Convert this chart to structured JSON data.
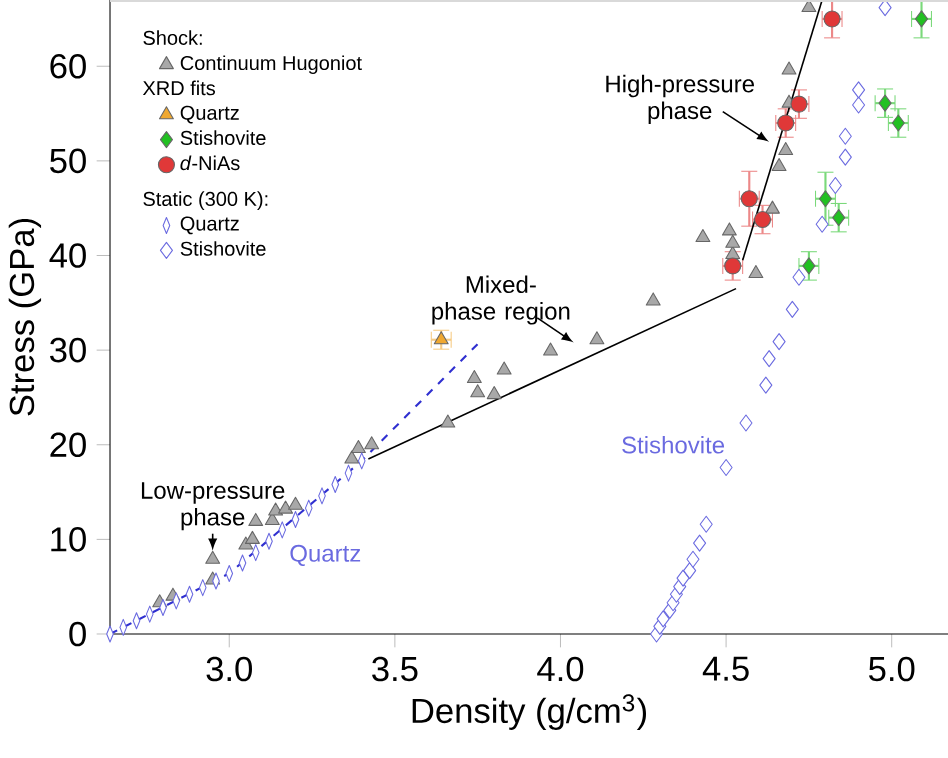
{
  "chart_data": {
    "type": "scatter",
    "xlabel": "Density (g/cm$^{3}$)",
    "ylabel": "Stress (GPa)",
    "xlim": [
      2.64,
      5.17
    ],
    "ylim": [
      0,
      67
    ],
    "xticks": [
      {
        "value": 3,
        "label": "3.0"
      },
      3.5,
      {
        "value": 4,
        "label": "4.0"
      },
      4.5,
      {
        "value": 5,
        "label": "5.0"
      }
    ],
    "yticks": [
      0,
      10,
      20,
      30,
      40,
      50,
      60
    ],
    "grid": false,
    "legend": "top left",
    "annotations": [
      "Shock:",
      "XRD fits",
      "Static (300 K):",
      {
        "text": "Low-pressure phase",
        "x": 2.95,
        "y": 8.8
      },
      "Mixed-phase region",
      {
        "text": "High-pressure phase",
        "x": 4.63,
        "y": 52
      },
      "Quartz",
      "Stishovite"
    ],
    "series": [
      {
        "name": "Continuum Hugoniot",
        "color": "#a8a8a8",
        "marker": "triangle",
        "x": [
          2.79,
          2.83,
          2.95,
          2.95,
          3.05,
          3.07,
          3.08,
          3.13,
          3.14,
          3.17,
          3.2,
          3.37,
          3.39,
          3.43,
          3.66,
          3.74,
          3.75,
          3.8,
          3.83,
          3.97,
          4.11,
          4.28,
          4.43,
          4.51,
          4.52,
          4.52,
          4.59,
          4.64,
          4.66,
          4.68,
          4.69,
          4.69,
          4.75
        ],
        "values": [
          3.3,
          4.0,
          7.9,
          5.7,
          9.4,
          10,
          11.9,
          12,
          13,
          13.2,
          13.6,
          18.5,
          19.6,
          20,
          22.3,
          27,
          25.5,
          25.3,
          27.9,
          29.9,
          31.1,
          35.2,
          41.9,
          42.6,
          40.1,
          41.3,
          38.1,
          44.9,
          49.4,
          51.1,
          56.1,
          59.6,
          66.2
        ]
      },
      {
        "name": "Quartz",
        "color": "#f0a830",
        "marker": "triangle",
        "x": [
          3.64
        ],
        "values": [
          31.1
        ],
        "errors": [
          1
        ],
        "xerrors": [
          0.03
        ]
      },
      {
        "name": "Stishovite",
        "color": "#22c022",
        "marker": "diamond",
        "x": [
          4.75,
          4.8,
          4.84,
          4.98,
          5.02,
          5.09
        ],
        "values": [
          38.9,
          46.0,
          44.0,
          56.1,
          54.0,
          65.0
        ],
        "errors": [
          1.5,
          2.8,
          1.5,
          1.5,
          1.5,
          2
        ],
        "xerrors": [
          0.03,
          0.03,
          0.03,
          0.03,
          0.03,
          0.03
        ]
      },
      {
        "name": "*d*-NiAs",
        "color": "#e03838",
        "marker": "circle",
        "x": [
          4.52,
          4.61,
          4.57,
          4.68,
          4.72,
          4.82
        ],
        "values": [
          38.9,
          43.8,
          46.0,
          54.0,
          56.0,
          65.0
        ],
        "errors": [
          1.5,
          1.5,
          2.9,
          1.5,
          1.5,
          2
        ],
        "xerrors": [
          0.03,
          0.03,
          0.03,
          0.03,
          0.03,
          0.03
        ]
      },
      {
        "name": "Quartz",
        "color": "#6a6ae0",
        "marker": "diamond",
        "x": [
          2.64,
          2.68,
          2.72,
          2.76,
          2.8,
          2.84,
          2.88,
          2.92,
          2.96,
          3.0,
          3.04,
          3.08,
          3.12,
          3.16,
          3.2,
          3.24,
          3.28,
          3.32,
          3.36,
          3.4
        ],
        "values": [
          0,
          0.7,
          1.4,
          2.1,
          2.8,
          3.5,
          4.2,
          4.9,
          5.6,
          6.4,
          7.5,
          8.6,
          9.8,
          11.0,
          12.1,
          13.3,
          14.6,
          15.8,
          17.0,
          18.3
        ]
      },
      {
        "name": "Stishovite",
        "color": "#6a6ae0",
        "marker": "diamond",
        "x": [
          4.29,
          4.3,
          4.31,
          4.33,
          4.34,
          4.35,
          4.36,
          4.37,
          4.39,
          4.4,
          4.42,
          4.44,
          4.5,
          4.56,
          4.62,
          4.63,
          4.66,
          4.7,
          4.72,
          4.79,
          4.83,
          4.86,
          4.86,
          4.9,
          4.9,
          4.98
        ],
        "values": [
          0,
          0.8,
          1.6,
          2.5,
          3.3,
          4.2,
          5,
          5.9,
          6.7,
          7.9,
          9.6,
          11.6,
          17.6,
          22.3,
          26.3,
          29.1,
          30.9,
          34.3,
          37.7,
          43.3,
          47.4,
          50.4,
          52.6,
          55.9,
          57.5,
          66.2
        ]
      },
      {
        "type": "line",
        "color": "#000000",
        "line_style": "solid",
        "marker": "none",
        "x": [
          3.42,
          4.53
        ],
        "values": [
          18.5,
          36.5
        ]
      },
      {
        "type": "line",
        "color": "#000000",
        "line_style": "solid",
        "marker": "none",
        "x": [
          4.55,
          4.79
        ],
        "values": [
          39.5,
          67
        ]
      },
      {
        "type": "line",
        "color": "#3030d0",
        "line_style": "dashed",
        "marker": "none",
        "x": [
          2.64,
          3.0,
          3.4,
          3.76
        ],
        "values": [
          0,
          6.4,
          18.3,
          31
        ]
      }
    ]
  }
}
